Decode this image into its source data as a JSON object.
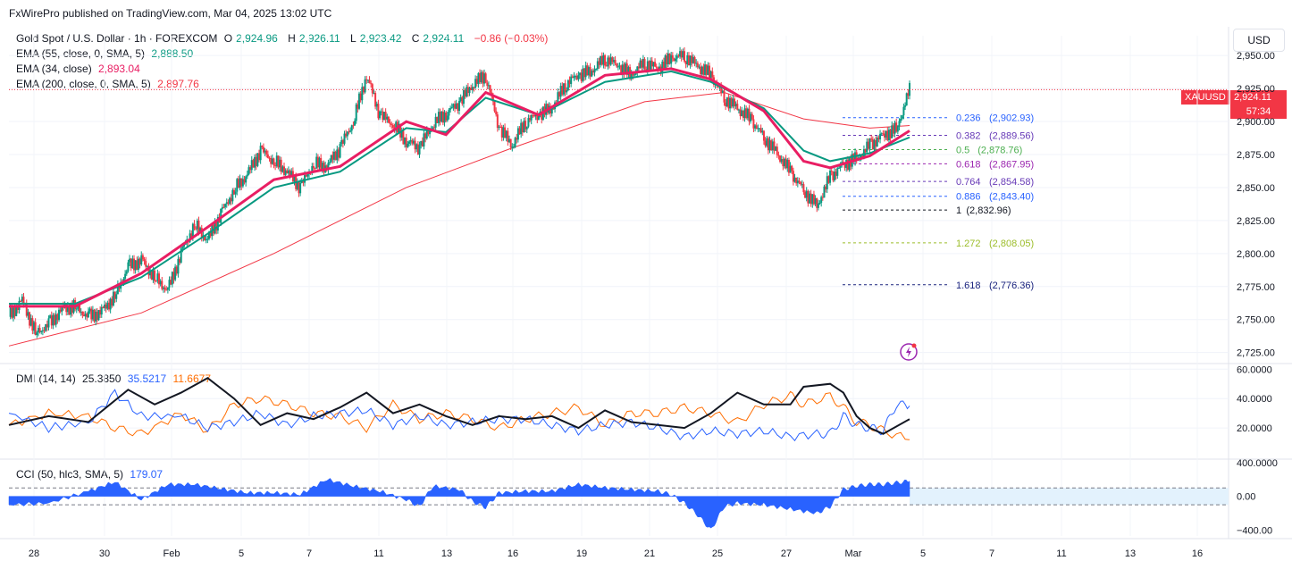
{
  "header": "FxWirePro published on TradingView.com, Mar 04, 2025 13:02 UTC",
  "currency_button": "USD",
  "legend": {
    "symbol": "Gold Spot / U.S. Dollar · 1h · FOREXCOM",
    "o_label": "O",
    "o": "2,924.96",
    "h_label": "H",
    "h": "2,926.11",
    "l_label": "L",
    "l": "2,923.42",
    "c_label": "C",
    "c": "2,924.11",
    "change": "−0.86 (−0.03%)",
    "ema55_label": "EMA (55, close, 0, SMA, 5)",
    "ema55": "2,888.50",
    "ema34_label": "EMA (34, close)",
    "ema34": "2,893.04",
    "ema200_label": "EMA (200, close, 0, SMA, 5)",
    "ema200": "2,897.76"
  },
  "dmi_legend": {
    "label": "DMI (14, 14)",
    "adx": "25.3850",
    "plus_di": "35.5217",
    "minus_di": "11.6677"
  },
  "cci_legend": {
    "label": "CCI (50, hlc3, SMA, 5)",
    "value": "179.07"
  },
  "price_tag": {
    "symbol": "XAUUSD",
    "price": "2,924.11",
    "countdown": "57:34"
  },
  "colors": {
    "up": "#089981",
    "down": "#f23645",
    "ema55": "#089981",
    "ema34": "#e91e63",
    "ema200": "#f23645",
    "adx": "#131722",
    "plus_di": "#2962ff",
    "minus_di": "#ff6d00",
    "cci": "#2962ff"
  },
  "chart_data": {
    "type": "line",
    "x_ticks": [
      "28",
      "30",
      "Feb",
      "5",
      "7",
      "11",
      "13",
      "16",
      "19",
      "21",
      "25",
      "27",
      "Mar",
      "5",
      "7",
      "11",
      "13",
      "16"
    ],
    "y_ticks": [
      "2,950.00",
      "2,925.00",
      "2,900.00",
      "2,875.00",
      "2,850.00",
      "2,825.00",
      "2,800.00",
      "2,775.00",
      "2,750.00",
      "2,725.00"
    ],
    "y_tick_values": [
      2950,
      2925,
      2900,
      2875,
      2850,
      2825,
      2800,
      2775,
      2750,
      2725
    ],
    "ylim": [
      2718,
      2965
    ],
    "price_path": [
      [
        0,
        2752
      ],
      [
        2,
        2765
      ],
      [
        4,
        2740
      ],
      [
        6,
        2746
      ],
      [
        8,
        2758
      ],
      [
        10,
        2760
      ],
      [
        12,
        2752
      ],
      [
        14,
        2756
      ],
      [
        16,
        2768
      ],
      [
        18,
        2790
      ],
      [
        20,
        2795
      ],
      [
        22,
        2782
      ],
      [
        24,
        2772
      ],
      [
        26,
        2800
      ],
      [
        28,
        2822
      ],
      [
        30,
        2810
      ],
      [
        32,
        2830
      ],
      [
        34,
        2848
      ],
      [
        36,
        2860
      ],
      [
        38,
        2878
      ],
      [
        40,
        2870
      ],
      [
        42,
        2862
      ],
      [
        44,
        2850
      ],
      [
        46,
        2868
      ],
      [
        48,
        2866
      ],
      [
        50,
        2880
      ],
      [
        52,
        2900
      ],
      [
        54,
        2935
      ],
      [
        56,
        2905
      ],
      [
        58,
        2898
      ],
      [
        60,
        2885
      ],
      [
        62,
        2880
      ],
      [
        64,
        2898
      ],
      [
        66,
        2906
      ],
      [
        68,
        2914
      ],
      [
        70,
        2928
      ],
      [
        72,
        2935
      ],
      [
        74,
        2895
      ],
      [
        76,
        2882
      ],
      [
        78,
        2900
      ],
      [
        80,
        2905
      ],
      [
        82,
        2910
      ],
      [
        84,
        2928
      ],
      [
        86,
        2935
      ],
      [
        88,
        2938
      ],
      [
        90,
        2948
      ],
      [
        92,
        2942
      ],
      [
        94,
        2935
      ],
      [
        96,
        2945
      ],
      [
        98,
        2940
      ],
      [
        100,
        2948
      ],
      [
        102,
        2950
      ],
      [
        104,
        2942
      ],
      [
        106,
        2935
      ],
      [
        108,
        2918
      ],
      [
        110,
        2910
      ],
      [
        112,
        2902
      ],
      [
        114,
        2888
      ],
      [
        116,
        2876
      ],
      [
        118,
        2862
      ],
      [
        120,
        2848
      ],
      [
        122,
        2836
      ],
      [
        124,
        2858
      ],
      [
        126,
        2868
      ],
      [
        128,
        2872
      ],
      [
        130,
        2882
      ],
      [
        132,
        2890
      ],
      [
        134,
        2894
      ],
      [
        136,
        2924
      ]
    ],
    "series": [
      {
        "name": "EMA (55, close, 0, SMA, 5)",
        "values": [
          [
            0,
            2762
          ],
          [
            10,
            2762
          ],
          [
            20,
            2782
          ],
          [
            30,
            2815
          ],
          [
            40,
            2850
          ],
          [
            50,
            2862
          ],
          [
            60,
            2895
          ],
          [
            66,
            2892
          ],
          [
            72,
            2918
          ],
          [
            80,
            2905
          ],
          [
            90,
            2930
          ],
          [
            100,
            2938
          ],
          [
            106,
            2930
          ],
          [
            114,
            2910
          ],
          [
            120,
            2878
          ],
          [
            124,
            2870
          ],
          [
            130,
            2876
          ],
          [
            136,
            2888
          ]
        ]
      },
      {
        "name": "EMA (34, close)",
        "values": [
          [
            0,
            2760
          ],
          [
            10,
            2760
          ],
          [
            20,
            2785
          ],
          [
            30,
            2820
          ],
          [
            40,
            2856
          ],
          [
            50,
            2866
          ],
          [
            60,
            2900
          ],
          [
            66,
            2890
          ],
          [
            72,
            2922
          ],
          [
            80,
            2905
          ],
          [
            90,
            2935
          ],
          [
            100,
            2940
          ],
          [
            106,
            2932
          ],
          [
            114,
            2908
          ],
          [
            120,
            2870
          ],
          [
            124,
            2865
          ],
          [
            130,
            2874
          ],
          [
            136,
            2893
          ]
        ]
      },
      {
        "name": "EMA (200, close, 0, SMA, 5)",
        "values": [
          [
            0,
            2730
          ],
          [
            20,
            2755
          ],
          [
            40,
            2800
          ],
          [
            60,
            2850
          ],
          [
            76,
            2880
          ],
          [
            96,
            2915
          ],
          [
            108,
            2922
          ],
          [
            120,
            2902
          ],
          [
            130,
            2895
          ],
          [
            136,
            2897
          ]
        ]
      }
    ],
    "fib_levels": [
      {
        "ratio": "0.236",
        "price": "(2,902.93)",
        "value": 2902.93,
        "color": "#2962ff"
      },
      {
        "ratio": "0.382",
        "price": "(2,889.56)",
        "value": 2889.56,
        "color": "#673ab7"
      },
      {
        "ratio": "0.5",
        "price": "(2,878.76)",
        "value": 2878.76,
        "color": "#4caf50"
      },
      {
        "ratio": "0.618",
        "price": "(2,867.95)",
        "value": 2867.95,
        "color": "#9c27b0"
      },
      {
        "ratio": "0.764",
        "price": "(2,854.58)",
        "value": 2854.58,
        "color": "#673ab7"
      },
      {
        "ratio": "0.886",
        "price": "(2,843.40)",
        "value": 2843.4,
        "color": "#2962ff"
      },
      {
        "ratio": "1",
        "price": "(2,832.96)",
        "value": 2832.96,
        "color": "#131722"
      },
      {
        "ratio": "1.272",
        "price": "(2,808.05)",
        "value": 2808.05,
        "color": "#9cbd2a"
      },
      {
        "ratio": "1.618",
        "price": "(2,776.36)",
        "value": 2776.36,
        "color": "#1a237e"
      }
    ],
    "dmi": {
      "y_ticks": [
        "60.0000",
        "40.0000",
        "20.0000"
      ],
      "y_tick_values": [
        60,
        40,
        20
      ],
      "ylim": [
        0,
        62
      ],
      "adx": [
        [
          0,
          22
        ],
        [
          6,
          28
        ],
        [
          12,
          24
        ],
        [
          18,
          46
        ],
        [
          22,
          36
        ],
        [
          26,
          44
        ],
        [
          30,
          54
        ],
        [
          34,
          40
        ],
        [
          38,
          22
        ],
        [
          42,
          30
        ],
        [
          46,
          26
        ],
        [
          50,
          34
        ],
        [
          54,
          44
        ],
        [
          58,
          30
        ],
        [
          62,
          36
        ],
        [
          66,
          28
        ],
        [
          70,
          22
        ],
        [
          74,
          28
        ],
        [
          78,
          26
        ],
        [
          82,
          28
        ],
        [
          86,
          20
        ],
        [
          90,
          32
        ],
        [
          94,
          24
        ],
        [
          98,
          22
        ],
        [
          102,
          20
        ],
        [
          106,
          30
        ],
        [
          110,
          44
        ],
        [
          114,
          36
        ],
        [
          118,
          36
        ],
        [
          120,
          48
        ],
        [
          124,
          50
        ],
        [
          126,
          44
        ],
        [
          128,
          28
        ],
        [
          130,
          20
        ],
        [
          132,
          16
        ],
        [
          136,
          26
        ]
      ],
      "plus_di": [
        [
          0,
          30
        ],
        [
          6,
          20
        ],
        [
          12,
          24
        ],
        [
          16,
          44
        ],
        [
          20,
          28
        ],
        [
          26,
          28
        ],
        [
          30,
          20
        ],
        [
          34,
          24
        ],
        [
          38,
          30
        ],
        [
          42,
          22
        ],
        [
          46,
          28
        ],
        [
          50,
          30
        ],
        [
          54,
          32
        ],
        [
          58,
          22
        ],
        [
          62,
          28
        ],
        [
          66,
          22
        ],
        [
          70,
          24
        ],
        [
          74,
          26
        ],
        [
          78,
          26
        ],
        [
          82,
          22
        ],
        [
          86,
          18
        ],
        [
          90,
          22
        ],
        [
          94,
          24
        ],
        [
          98,
          20
        ],
        [
          102,
          14
        ],
        [
          106,
          18
        ],
        [
          110,
          16
        ],
        [
          114,
          18
        ],
        [
          118,
          14
        ],
        [
          122,
          16
        ],
        [
          124,
          16
        ],
        [
          126,
          28
        ],
        [
          128,
          22
        ],
        [
          130,
          20
        ],
        [
          132,
          18
        ],
        [
          134,
          36
        ],
        [
          136,
          35
        ]
      ],
      "minus_di": [
        [
          0,
          22
        ],
        [
          6,
          30
        ],
        [
          12,
          28
        ],
        [
          16,
          20
        ],
        [
          20,
          16
        ],
        [
          26,
          30
        ],
        [
          30,
          18
        ],
        [
          34,
          36
        ],
        [
          38,
          40
        ],
        [
          42,
          36
        ],
        [
          46,
          30
        ],
        [
          50,
          28
        ],
        [
          54,
          20
        ],
        [
          58,
          36
        ],
        [
          62,
          26
        ],
        [
          66,
          30
        ],
        [
          70,
          26
        ],
        [
          74,
          20
        ],
        [
          78,
          26
        ],
        [
          82,
          30
        ],
        [
          86,
          34
        ],
        [
          90,
          22
        ],
        [
          94,
          30
        ],
        [
          98,
          30
        ],
        [
          102,
          34
        ],
        [
          106,
          30
        ],
        [
          110,
          24
        ],
        [
          114,
          36
        ],
        [
          118,
          42
        ],
        [
          120,
          36
        ],
        [
          124,
          42
        ],
        [
          126,
          34
        ],
        [
          128,
          24
        ],
        [
          130,
          22
        ],
        [
          132,
          18
        ],
        [
          136,
          12
        ]
      ]
    },
    "cci": {
      "y_ticks": [
        "400.0000",
        "0.00",
        "−400.00"
      ],
      "y_tick_values": [
        400,
        0,
        -400
      ],
      "ylim": [
        -470,
        420
      ],
      "values": [
        [
          0,
          -100
        ],
        [
          6,
          -80
        ],
        [
          12,
          60
        ],
        [
          16,
          170
        ],
        [
          20,
          -40
        ],
        [
          24,
          140
        ],
        [
          28,
          140
        ],
        [
          32,
          90
        ],
        [
          36,
          40
        ],
        [
          40,
          40
        ],
        [
          44,
          20
        ],
        [
          48,
          200
        ],
        [
          52,
          120
        ],
        [
          56,
          60
        ],
        [
          60,
          -40
        ],
        [
          62,
          -120
        ],
        [
          64,
          120
        ],
        [
          68,
          80
        ],
        [
          70,
          -60
        ],
        [
          72,
          -130
        ],
        [
          74,
          40
        ],
        [
          78,
          60
        ],
        [
          82,
          60
        ],
        [
          86,
          140
        ],
        [
          90,
          100
        ],
        [
          94,
          80
        ],
        [
          98,
          60
        ],
        [
          100,
          20
        ],
        [
          102,
          -80
        ],
        [
          104,
          -220
        ],
        [
          106,
          -400
        ],
        [
          108,
          -120
        ],
        [
          110,
          -80
        ],
        [
          114,
          -100
        ],
        [
          118,
          -150
        ],
        [
          122,
          -200
        ],
        [
          124,
          -120
        ],
        [
          126,
          80
        ],
        [
          128,
          120
        ],
        [
          130,
          140
        ],
        [
          132,
          140
        ],
        [
          134,
          160
        ],
        [
          136,
          179
        ]
      ]
    }
  }
}
